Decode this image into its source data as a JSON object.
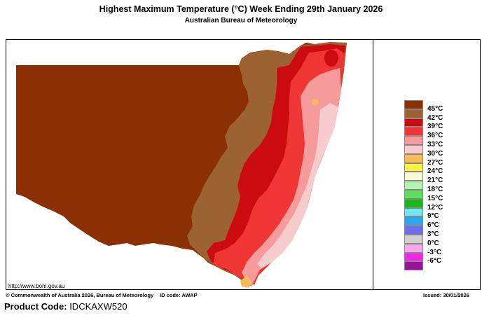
{
  "header": {
    "title": "Highest Maximum Temperature (°C)   Week Ending 29th January 2026",
    "subtitle": "Australian Bureau of Meteorology"
  },
  "map": {
    "url": "http://www.bom.gov.au",
    "region": "New South Wales",
    "legend": [
      {
        "label": "45°C",
        "color": "#8b3003"
      },
      {
        "label": "42°C",
        "color": "#9c6232"
      },
      {
        "label": "39°C",
        "color": "#cc0b10"
      },
      {
        "label": "36°C",
        "color": "#f03535"
      },
      {
        "label": "33°C",
        "color": "#f59b9b"
      },
      {
        "label": "30°C",
        "color": "#f8cccc"
      },
      {
        "label": "27°C",
        "color": "#f5bb58"
      },
      {
        "label": "24°C",
        "color": "#fbf33f"
      },
      {
        "label": "21°C",
        "color": "#fafad4"
      },
      {
        "label": "18°C",
        "color": "#b2f2b2"
      },
      {
        "label": "15°C",
        "color": "#5edf5e"
      },
      {
        "label": "12°C",
        "color": "#17b717"
      },
      {
        "label": "9°C",
        "color": "#6fe8f0"
      },
      {
        "label": "6°C",
        "color": "#2ea6ee"
      },
      {
        "label": "3°C",
        "color": "#6d6df0"
      },
      {
        "label": "0°C",
        "color": "#cfcfcf"
      },
      {
        "label": "-3°C",
        "color": "#f7a8ef"
      },
      {
        "label": "-6°C",
        "color": "#ee28e8"
      },
      {
        "label": "",
        "color": "#98129b"
      }
    ]
  },
  "footer": {
    "copyright": "© Commonwealth of Australia 2026, Bureau of Meteorology",
    "id_code": "ID code: AWAP",
    "issued": "Issued: 30/01/2026"
  },
  "product": {
    "label": "Product Code:",
    "code": "IDCKAXW520"
  }
}
